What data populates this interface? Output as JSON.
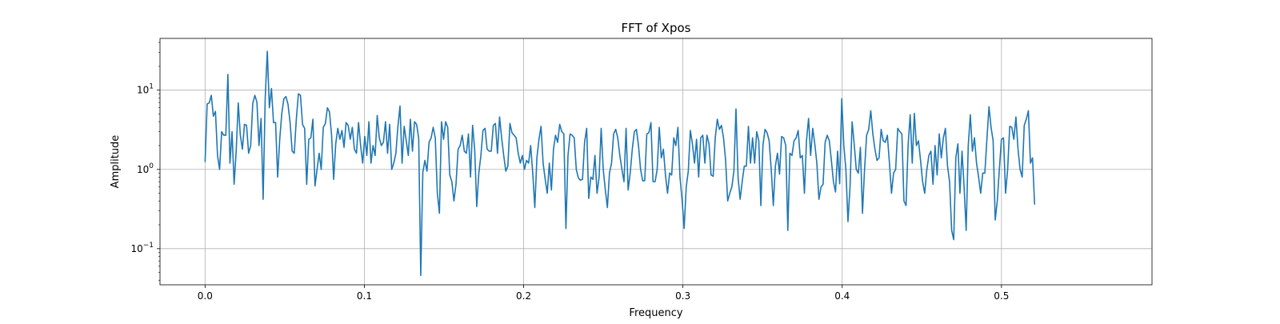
{
  "chart_data": {
    "type": "line",
    "title": "FFT of Xpos",
    "xlabel": "Frequency",
    "ylabel": "Amplitude",
    "xlim": [
      -0.0283,
      0.5945
    ],
    "ylim": [
      0.035,
      45
    ],
    "yscale": "log",
    "grid": true,
    "series_color": "#1f77b4",
    "xticks": [
      {
        "value": 0.0,
        "label": "0.0"
      },
      {
        "value": 0.1,
        "label": "0.1"
      },
      {
        "value": 0.2,
        "label": "0.2"
      },
      {
        "value": 0.3,
        "label": "0.3"
      },
      {
        "value": 0.4,
        "label": "0.4"
      },
      {
        "value": 0.5,
        "label": "0.5"
      }
    ],
    "yticks": [
      {
        "value": 0.1,
        "base": "10",
        "exp": "−1"
      },
      {
        "value": 1,
        "base": "10",
        "exp": "0"
      },
      {
        "value": 10,
        "base": "10",
        "exp": "1"
      }
    ],
    "x_start": 0.0,
    "x_step": 0.001302,
    "values": [
      1.24,
      6.7,
      6.9,
      8.6,
      4.7,
      5.4,
      1.5,
      1.0,
      3.0,
      2.7,
      2.7,
      15.8,
      1.2,
      3.0,
      0.65,
      1.7,
      6.9,
      2.7,
      1.8,
      3.7,
      3.6,
      1.6,
      2.0,
      6.8,
      8.6,
      7.1,
      2.0,
      4.4,
      0.42,
      8.0,
      31.0,
      6.0,
      10.5,
      3.9,
      3.9,
      0.8,
      2.4,
      5.1,
      7.8,
      8.3,
      6.6,
      3.9,
      1.7,
      1.6,
      4.3,
      9.0,
      8.6,
      3.7,
      3.3,
      0.65,
      2.4,
      2.5,
      4.3,
      0.62,
      1.0,
      1.6,
      1.0,
      3.4,
      3.8,
      6.0,
      5.3,
      2.7,
      0.75,
      2.1,
      3.3,
      2.4,
      3.1,
      1.9,
      3.9,
      3.6,
      2.4,
      3.4,
      1.8,
      1.6,
      3.9,
      2.0,
      1.2,
      2.6,
      1.5,
      4.0,
      1.2,
      2.0,
      1.5,
      4.8,
      2.5,
      2.0,
      2.2,
      4.0,
      1.6,
      3.7,
      1.0,
      1.2,
      1.6,
      3.5,
      6.3,
      1.2,
      3.5,
      2.3,
      1.5,
      4.3,
      1.7,
      4.0,
      3.7,
      2.5,
      0.046,
      0.92,
      1.3,
      0.95,
      2.2,
      2.5,
      3.4,
      2.5,
      0.5,
      0.28,
      4.0,
      2.4,
      4.0,
      3.4,
      0.85,
      0.7,
      0.4,
      0.65,
      1.8,
      2.0,
      2.7,
      1.7,
      1.6,
      2.8,
      0.8,
      3.6,
      1.8,
      0.34,
      0.9,
      1.5,
      3.1,
      3.3,
      1.8,
      1.7,
      1.7,
      3.6,
      3.8,
      1.6,
      4.6,
      2.5,
      1.5,
      0.95,
      1.1,
      3.8,
      2.9,
      2.7,
      2.5,
      1.6,
      1.2,
      1.5,
      1.0,
      1.3,
      1.2,
      2.0,
      0.9,
      0.33,
      1.4,
      2.4,
      3.5,
      1.2,
      0.75,
      0.5,
      1.2,
      0.55,
      1.8,
      2.7,
      2.2,
      3.7,
      3.0,
      2.8,
      0.18,
      1.5,
      2.8,
      2.7,
      2.5,
      1.0,
      0.78,
      0.73,
      0.75,
      2.2,
      3.3,
      0.43,
      0.8,
      0.75,
      1.5,
      0.5,
      0.8,
      3.3,
      1.0,
      0.55,
      0.33,
      0.9,
      1.2,
      2.8,
      3.2,
      2.5,
      1.5,
      1.0,
      0.7,
      3.3,
      0.55,
      0.9,
      1.8,
      3.0,
      3.2,
      2.0,
      1.0,
      0.72,
      0.72,
      2.8,
      2.9,
      3.9,
      0.7,
      0.7,
      1.0,
      3.4,
      1.4,
      1.8,
      0.85,
      0.5,
      0.9,
      0.85,
      2.5,
      2.0,
      3.4,
      0.8,
      0.42,
      0.18,
      0.6,
      0.95,
      3.1,
      2.1,
      1.2,
      2.4,
      0.8,
      2.5,
      2.7,
      1.2,
      2.7,
      2.1,
      0.85,
      0.82,
      2.5,
      4.3,
      3.2,
      3.6,
      2.5,
      1.3,
      0.4,
      0.5,
      0.6,
      0.95,
      5.8,
      0.8,
      0.42,
      0.7,
      1.1,
      1.1,
      3.5,
      1.2,
      2.5,
      1.2,
      3.0,
      2.3,
      0.35,
      2.0,
      3.2,
      2.9,
      2.3,
      1.0,
      0.35,
      1.1,
      1.6,
      0.87,
      2.6,
      2.5,
      2.0,
      0.17,
      1.6,
      1.5,
      2.3,
      2.5,
      3.1,
      1.4,
      1.5,
      0.5,
      2.3,
      4.4,
      1.5,
      3.3,
      2.1,
      1.2,
      0.42,
      0.6,
      0.65,
      2.2,
      2.7,
      2.3,
      1.3,
      0.7,
      0.52,
      1.7,
      0.66,
      7.8,
      2.0,
      1.0,
      0.22,
      0.6,
      4.0,
      2.1,
      1.0,
      0.9,
      1.9,
      0.28,
      1.0,
      2.7,
      3.2,
      5.5,
      2.8,
      1.8,
      1.3,
      1.4,
      3.2,
      2.3,
      2.2,
      2.7,
      1.2,
      0.5,
      0.9,
      1.0,
      3.3,
      3.0,
      2.8,
      0.4,
      0.35,
      2.0,
      4.9,
      1.2,
      5.1,
      2.0,
      2.3,
      1.3,
      0.7,
      0.5,
      0.98,
      1.5,
      1.7,
      0.65,
      2.0,
      0.85,
      2.8,
      1.4,
      2.5,
      3.3,
      1.1,
      0.7,
      0.17,
      0.13,
      1.4,
      2.1,
      0.5,
      1.7,
      0.6,
      0.17,
      2.0,
      4.9,
      1.7,
      2.5,
      1.2,
      0.8,
      0.5,
      0.9,
      0.9,
      2.4,
      6.2,
      3.4,
      2.3,
      0.23,
      0.4,
      1.0,
      2.4,
      2.5,
      0.5,
      1.0,
      3.5,
      3.4,
      2.4,
      4.6,
      1.8,
      1.0,
      0.8,
      3.6,
      4.3,
      5.5,
      1.2,
      1.4,
      0.36
    ]
  }
}
